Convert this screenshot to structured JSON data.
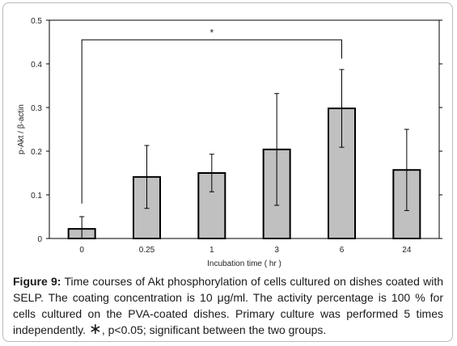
{
  "chart_data": {
    "type": "bar",
    "xlabel": "Incubation time ( hr )",
    "ylabel": "p-Akt / β-actin",
    "ylim": [
      0,
      0.5
    ],
    "yticks": [
      "0",
      "0.1",
      "0.2",
      "0.3",
      "0.4",
      "0.5"
    ],
    "categories": [
      "0",
      "0.25",
      "1",
      "3",
      "6",
      "24"
    ],
    "values": [
      0.022,
      0.141,
      0.15,
      0.204,
      0.298,
      0.157
    ],
    "error_bars": [
      0.028,
      0.072,
      0.043,
      0.128,
      0.089,
      0.093
    ],
    "grid": false,
    "bar_color": "#c0c0c0",
    "significance": {
      "from_category": "0",
      "to_category": "6",
      "label": "*"
    }
  },
  "caption": {
    "label": "Figure 9:",
    "text": "Time courses of Akt phosphorylation of cells cultured on dishes coated with SELP. The coating concentration is 10 μg/ml. The activity percentage is 100 % for cells cultured on the PVA-coated dishes. Primary culture was performed 5 times independently.",
    "symbol": "∗",
    "note": ", p<0.05; significant between the two groups."
  }
}
